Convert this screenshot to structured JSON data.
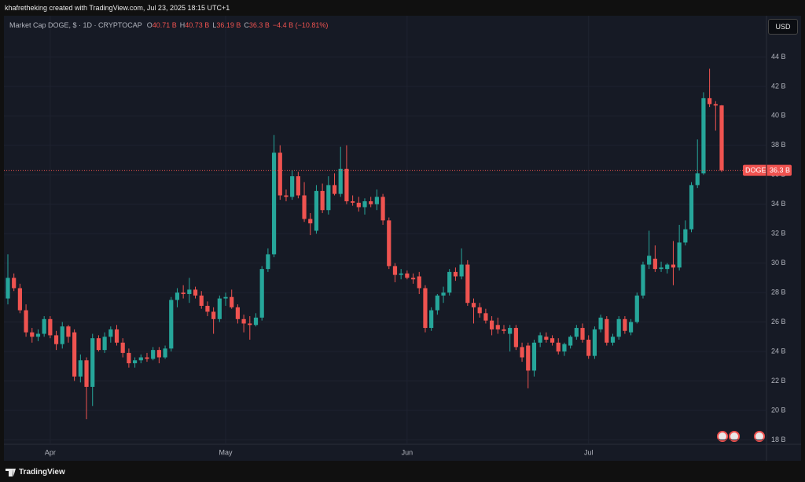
{
  "header": {
    "attribution": "khafretheking created with TradingView.com, Jul 23, 2025 18:15 UTC+1",
    "footer": "TradingView"
  },
  "chart_data": {
    "type": "candlestick",
    "title": "Market Cap DOGE, $ · 1D · CRYPTOCAP",
    "ohlc_legend": [
      {
        "key": "O",
        "value": "40.71 B"
      },
      {
        "key": "H",
        "value": "40.73 B"
      },
      {
        "key": "L",
        "value": "36.19 B"
      },
      {
        "key": "C",
        "value": "36.3 B"
      }
    ],
    "change": "−4.4 B (−10.81%)",
    "currency": "USD",
    "categories": [
      null,
      null,
      null,
      null,
      null,
      null,
      null,
      "Apr",
      null,
      null,
      null,
      null,
      null,
      null,
      null,
      null,
      null,
      null,
      null,
      null,
      null,
      null,
      null,
      null,
      null,
      null,
      null,
      null,
      null,
      null,
      null,
      null,
      null,
      null,
      null,
      null,
      "May",
      null,
      null,
      null,
      null,
      null,
      null,
      null,
      null,
      null,
      null,
      null,
      null,
      null,
      null,
      null,
      null,
      null,
      null,
      null,
      null,
      null,
      null,
      null,
      null,
      null,
      null,
      null,
      null,
      null,
      "Jun",
      null,
      null,
      null,
      null,
      null,
      null,
      null,
      null,
      null,
      null,
      null,
      null,
      null,
      null,
      null,
      null,
      null,
      null,
      null,
      null,
      null,
      null,
      null,
      null,
      null,
      null,
      null,
      null,
      null,
      "Jul",
      null,
      null,
      null,
      null,
      null,
      null,
      null,
      null,
      null,
      null,
      null,
      null,
      null,
      null,
      null,
      null,
      null,
      null,
      null,
      null,
      null,
      null
    ],
    "series": [
      {
        "name": "DOGE",
        "up_color": "#26a69a",
        "down_color": "#ef5350",
        "last_value_label": "36.3 B",
        "open": [
          27.6,
          29.0,
          28.3,
          26.8,
          25.3,
          25.0,
          25.2,
          26.2,
          25.1,
          24.5,
          25.7,
          25.3,
          22.3,
          23.4,
          21.6,
          24.9,
          24.1,
          25.0,
          25.5,
          24.6,
          23.9,
          23.2,
          23.4,
          23.6,
          23.5,
          24.1,
          23.6,
          24.2,
          27.5,
          28.0,
          27.9,
          28.2,
          27.8,
          27.1,
          26.7,
          26.2,
          27.6,
          27.7,
          27.0,
          26.2,
          25.9,
          25.8,
          26.3,
          29.6,
          30.6,
          37.5,
          34.6,
          34.5,
          35.9,
          34.6,
          33.0,
          32.2,
          34.9,
          33.6,
          35.3,
          34.7,
          36.4,
          34.2,
          34.1,
          33.8,
          34.2,
          34.0,
          34.5,
          32.9,
          29.8,
          29.2,
          29.3,
          29.0,
          29.1,
          28.3,
          25.6,
          26.8,
          27.8,
          28.0,
          29.4,
          29.1,
          29.9,
          27.3,
          27.0,
          26.6,
          26.1,
          25.8,
          25.5,
          25.2,
          25.6,
          24.3,
          24.4,
          22.7,
          24.6,
          25.0,
          24.9,
          24.6,
          24.0,
          24.4,
          25.0,
          25.6,
          24.8,
          23.7,
          25.5,
          26.2,
          24.6,
          25.0,
          26.2,
          25.3,
          26.0,
          27.8,
          29.9,
          30.3,
          29.6,
          29.6,
          29.9,
          29.7,
          31.4,
          32.3,
          35.3,
          36.1,
          41.2,
          40.8,
          40.71
        ],
        "high": [
          30.6,
          29.3,
          28.6,
          27.2,
          25.6,
          25.5,
          26.4,
          26.4,
          25.4,
          26.0,
          25.8,
          25.5,
          23.8,
          23.6,
          25.2,
          25.1,
          25.3,
          25.7,
          25.8,
          24.9,
          24.2,
          23.6,
          23.8,
          23.9,
          24.3,
          24.3,
          24.4,
          27.7,
          28.3,
          28.5,
          29.0,
          28.4,
          28.1,
          27.4,
          27.0,
          27.8,
          28.0,
          28.2,
          27.2,
          26.5,
          26.4,
          26.6,
          29.8,
          31.0,
          38.7,
          38.0,
          35.0,
          36.3,
          36.2,
          35.5,
          33.4,
          35.3,
          35.4,
          35.9,
          36.1,
          37.9,
          38.0,
          34.6,
          34.5,
          34.4,
          34.5,
          35.0,
          34.7,
          33.1,
          30.0,
          29.6,
          29.5,
          29.3,
          29.4,
          28.5,
          27.0,
          27.9,
          28.4,
          29.6,
          29.7,
          31.0,
          30.2,
          27.6,
          27.3,
          26.9,
          26.4,
          26.3,
          25.8,
          25.8,
          25.8,
          24.6,
          24.6,
          24.8,
          25.3,
          25.3,
          25.1,
          24.9,
          24.6,
          25.1,
          25.8,
          25.9,
          25.1,
          25.7,
          26.5,
          26.4,
          25.2,
          26.4,
          26.4,
          26.2,
          28.0,
          30.1,
          32.2,
          31.2,
          30.1,
          30.0,
          31.5,
          32.6,
          32.9,
          35.5,
          38.4,
          41.6,
          43.2,
          41.0,
          40.73
        ],
        "low": [
          27.2,
          28.1,
          26.6,
          25.0,
          24.6,
          24.7,
          25.0,
          24.9,
          24.1,
          24.2,
          24.6,
          22.0,
          21.9,
          19.4,
          20.3,
          24.0,
          23.9,
          24.6,
          24.4,
          23.6,
          22.9,
          22.9,
          23.2,
          23.3,
          23.4,
          23.2,
          23.5,
          24.0,
          27.0,
          27.6,
          27.3,
          27.6,
          26.9,
          26.4,
          25.2,
          26.0,
          27.1,
          26.9,
          25.9,
          25.3,
          24.8,
          25.7,
          26.1,
          29.4,
          30.4,
          34.3,
          34.2,
          34.3,
          34.4,
          32.8,
          31.9,
          32.0,
          33.4,
          33.3,
          34.6,
          34.5,
          34.0,
          33.9,
          33.5,
          33.3,
          33.8,
          33.6,
          32.6,
          29.6,
          28.7,
          28.9,
          28.9,
          28.6,
          27.9,
          25.3,
          25.4,
          26.5,
          27.3,
          27.8,
          28.8,
          28.9,
          27.1,
          25.9,
          26.3,
          25.9,
          25.1,
          25.2,
          25.2,
          24.0,
          24.1,
          23.3,
          21.5,
          22.3,
          24.3,
          24.6,
          24.4,
          23.8,
          23.7,
          24.2,
          24.8,
          24.6,
          23.5,
          23.5,
          25.3,
          24.4,
          24.4,
          24.8,
          25.2,
          25.1,
          25.9,
          27.6,
          29.6,
          29.4,
          29.4,
          29.3,
          28.5,
          29.5,
          31.2,
          32.1,
          35.1,
          36.0,
          40.6,
          39.0,
          36.19
        ],
        "close": [
          29.0,
          28.3,
          26.8,
          25.3,
          25.0,
          25.2,
          26.2,
          25.1,
          24.5,
          25.7,
          25.0,
          22.3,
          23.4,
          21.6,
          24.9,
          24.1,
          25.0,
          25.5,
          24.6,
          23.9,
          23.2,
          23.4,
          23.6,
          23.5,
          24.1,
          23.6,
          24.2,
          27.5,
          28.0,
          27.9,
          28.2,
          27.8,
          27.1,
          26.7,
          26.2,
          27.6,
          27.7,
          27.0,
          26.2,
          25.9,
          25.8,
          26.3,
          29.6,
          30.6,
          37.5,
          34.6,
          34.5,
          35.9,
          34.6,
          33.0,
          32.7,
          34.9,
          33.6,
          35.3,
          34.7,
          36.4,
          34.2,
          34.1,
          33.8,
          34.2,
          34.0,
          34.5,
          32.9,
          29.8,
          29.2,
          29.3,
          29.0,
          28.9,
          28.3,
          25.6,
          26.8,
          27.8,
          28.0,
          29.4,
          29.1,
          29.9,
          27.3,
          27.0,
          26.6,
          26.1,
          25.5,
          25.5,
          25.4,
          25.6,
          24.3,
          23.6,
          22.7,
          24.6,
          25.1,
          24.8,
          24.6,
          24.0,
          24.5,
          25.0,
          25.6,
          24.8,
          23.7,
          25.5,
          26.3,
          24.6,
          25.0,
          26.2,
          25.4,
          26.0,
          27.8,
          29.9,
          30.5,
          29.6,
          29.7,
          29.9,
          29.7,
          31.4,
          32.3,
          35.3,
          36.1,
          41.2,
          40.8,
          40.7,
          36.3
        ]
      }
    ],
    "ylim": [
      17.7,
      46.8
    ],
    "yticks": [
      {
        "value": 18,
        "label": "18 B"
      },
      {
        "value": 20,
        "label": "20 B"
      },
      {
        "value": 22,
        "label": "22 B"
      },
      {
        "value": 24,
        "label": "24 B"
      },
      {
        "value": 26,
        "label": "26 B"
      },
      {
        "value": 28,
        "label": "28 B"
      },
      {
        "value": 30,
        "label": "30 B"
      },
      {
        "value": 32,
        "label": "32 B"
      },
      {
        "value": 34,
        "label": "34 B"
      },
      {
        "value": 36,
        "label": "36 B"
      },
      {
        "value": 38,
        "label": "38 B"
      },
      {
        "value": 40,
        "label": "40 B"
      },
      {
        "value": 42,
        "label": "42 B"
      },
      {
        "value": 44,
        "label": "44 B"
      }
    ],
    "grid": true
  }
}
